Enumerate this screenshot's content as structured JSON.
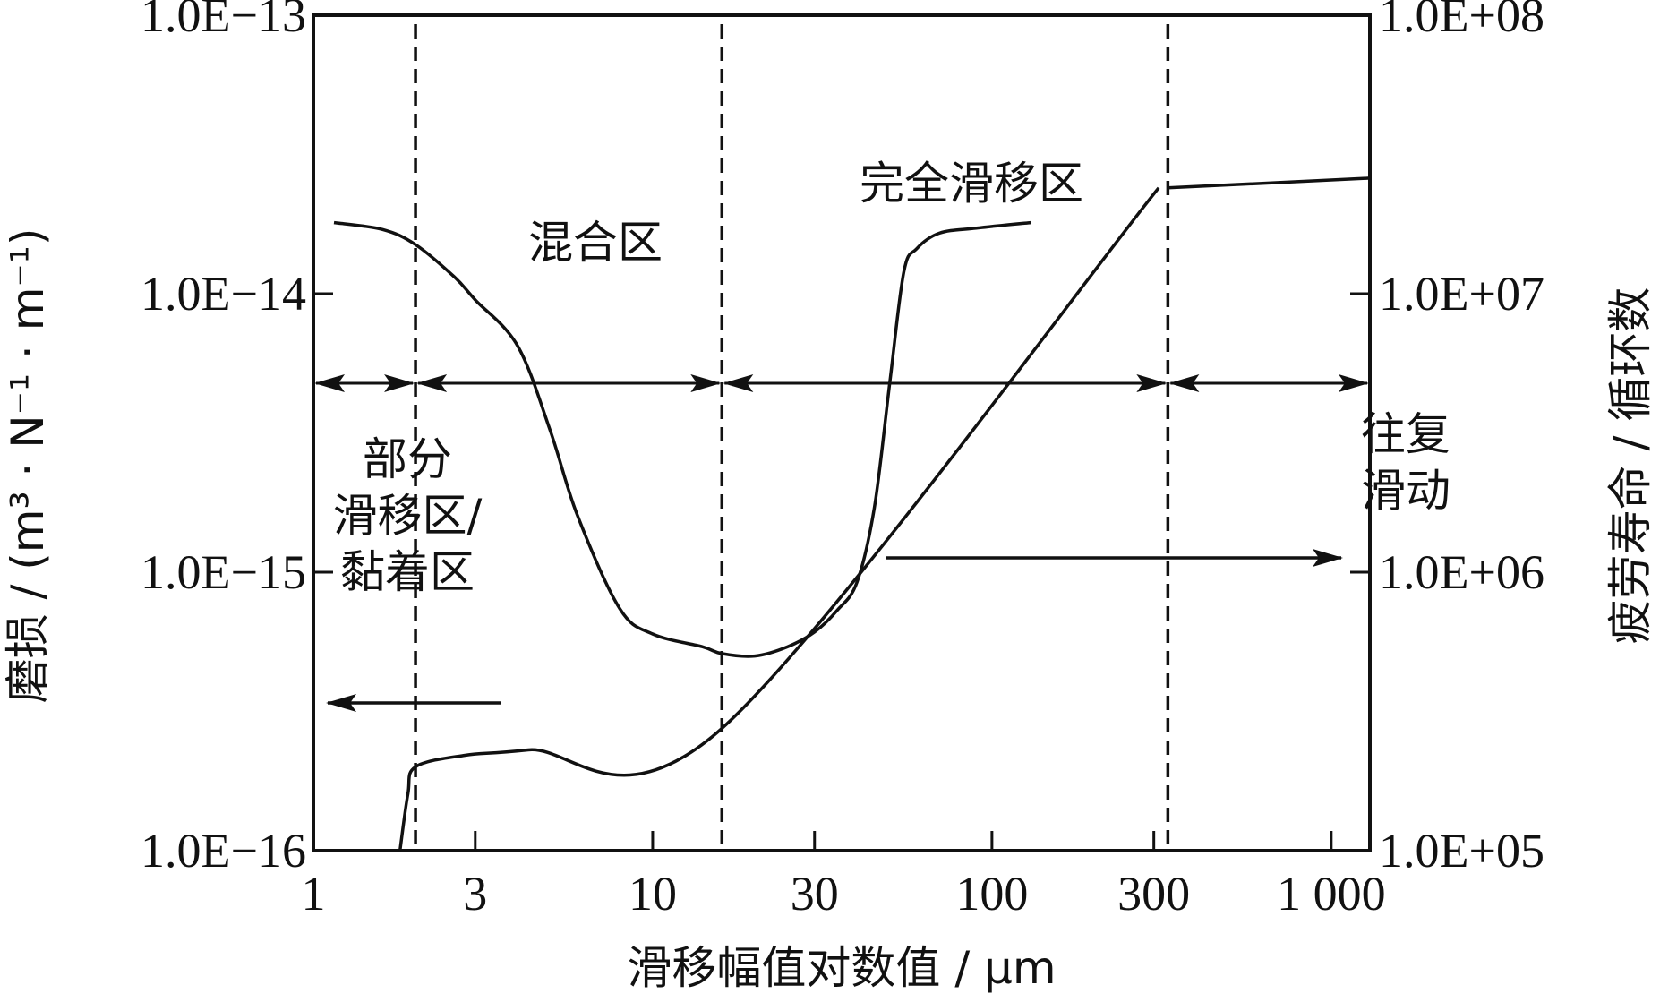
{
  "chart_data": {
    "type": "line",
    "xlabel": "滑移幅值对数值 / μm",
    "ylabel_left": "磨损 / (m³ · N⁻¹ · m⁻¹)",
    "ylabel_right": "疲劳寿命 / 循环数",
    "x_scale": "log",
    "xlim": [
      1,
      1300
    ],
    "x_ticks": [
      {
        "value": 1,
        "label": "1"
      },
      {
        "value": 3,
        "label": "3"
      },
      {
        "value": 10,
        "label": "10"
      },
      {
        "value": 30,
        "label": "30"
      },
      {
        "value": 100,
        "label": "100"
      },
      {
        "value": 300,
        "label": "300"
      },
      {
        "value": 1000,
        "label": "1 000"
      }
    ],
    "y_left_scale": "log",
    "y_left_lim": [
      1e-16,
      1e-13
    ],
    "y_left_ticks": [
      {
        "value": 1e-16,
        "label": "1.0E−16"
      },
      {
        "value": 1e-15,
        "label": "1.0E−15"
      },
      {
        "value": 1e-14,
        "label": "1.0E−14"
      },
      {
        "value": 1e-13,
        "label": "1.0E−13"
      }
    ],
    "y_right_scale": "log",
    "y_right_lim": [
      100000.0,
      100000000.0
    ],
    "y_right_ticks": [
      {
        "value": 100000,
        "label": "1.0E+05"
      },
      {
        "value": 1000000,
        "label": "1.0E+06"
      },
      {
        "value": 10000000,
        "label": "1.0E+07"
      },
      {
        "value": 100000000,
        "label": "1.0E+08"
      }
    ],
    "grid": false,
    "legend": "none",
    "series": [
      {
        "axis": "left",
        "x": [
          1.8,
          1.9,
          2.0,
          2.8,
          4.3,
          16.0,
          310.0
        ],
        "y": [
          1e-16,
          1.6e-16,
          2e-16,
          2.2e-16,
          2.3e-16,
          2.75e-16,
          2.4e-14
        ]
      },
      {
        "axis": "right",
        "x": [
          1.15,
          1.6,
          2.0,
          2.6,
          3.0,
          4.0,
          5.0,
          6.0,
          8.0,
          10.0,
          14.0,
          16.0,
          20.0,
          25.0,
          30.0,
          35.0,
          40.0,
          45.0,
          50.0,
          55.0,
          60.0,
          70.0,
          90.0,
          130.0
        ],
        "y": [
          18000000.0,
          17000000.0,
          15000000.0,
          11500000.0,
          9500000.0,
          6500000.0,
          3200000.0,
          1600000.0,
          740000.0,
          600000.0,
          540000.0,
          510000.0,
          500000.0,
          540000.0,
          610000.0,
          730000.0,
          920000.0,
          1700000.0,
          4800000.0,
          12000000.0,
          14500000.0,
          16500000.0,
          17200000.0,
          18000000.0
        ]
      },
      {
        "axis": "left",
        "x": [
          330.0,
          1300.0
        ],
        "y": [
          2.4e-14,
          2.6e-14
        ]
      }
    ],
    "boundaries": [
      {
        "x": 2.0,
        "style": "dashed"
      },
      {
        "x": 16.0,
        "style": "dashed"
      },
      {
        "x": 330.0,
        "style": "dashed"
      }
    ],
    "regions": [
      {
        "label": [
          "部分",
          "滑移区/",
          "黏着区"
        ],
        "from": 1,
        "to": 2.0
      },
      {
        "label": [
          "混合区"
        ],
        "from": 2.0,
        "to": 16.0
      },
      {
        "label": [
          "完全滑移区"
        ],
        "from": 16.0,
        "to": 330.0
      },
      {
        "label": [
          "往复",
          "滑动"
        ],
        "from": 330.0,
        "to": 1300.0
      }
    ],
    "annotations": [
      {
        "type": "arrow",
        "direction": "left",
        "points_to": "left-axis"
      },
      {
        "type": "arrow",
        "direction": "right",
        "points_to": "right-axis"
      }
    ]
  }
}
